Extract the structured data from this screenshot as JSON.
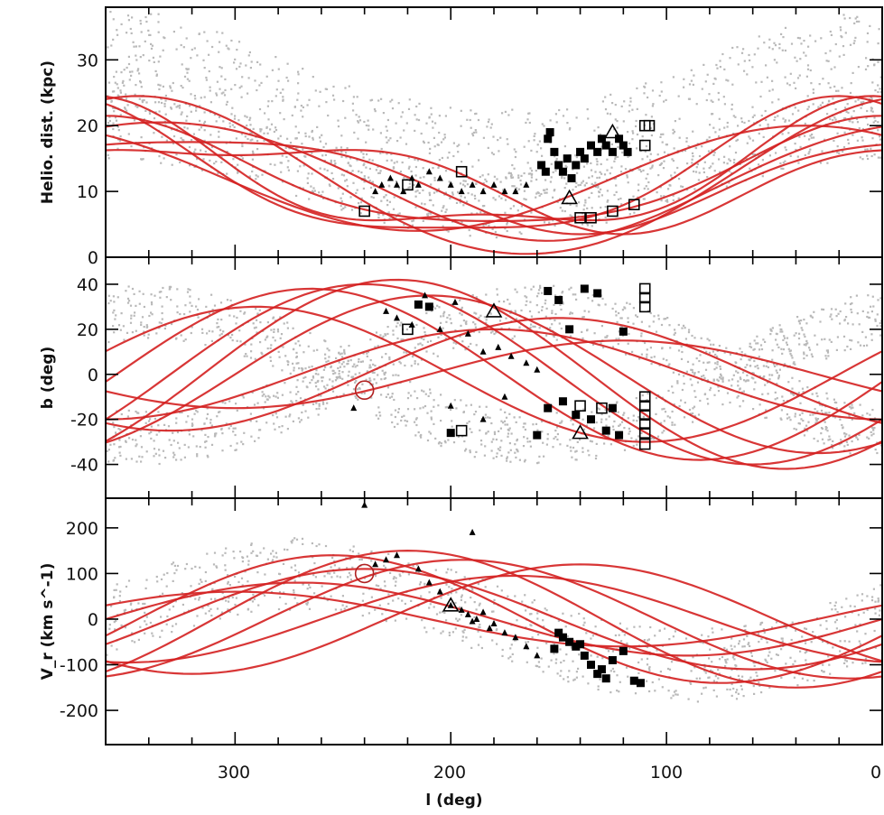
{
  "figure": {
    "xlabel": "l (deg)",
    "colors": {
      "models": "#d42020",
      "simulation": "#b9b9b9",
      "observations": "#000000"
    },
    "x_ticks": [
      {
        "value": 300,
        "label": "300"
      },
      {
        "value": 200,
        "label": "200"
      },
      {
        "value": 100,
        "label": "100"
      },
      {
        "value": 0,
        "label": "0"
      }
    ]
  },
  "chart_data": [
    {
      "type": "scatter",
      "panel": "top",
      "ylabel": "Helio. dist. (kpc)",
      "xlim": [
        360,
        0
      ],
      "ylim": [
        0,
        38
      ],
      "x_reversed": true,
      "yticks": [
        0,
        10,
        20,
        30
      ],
      "series": [
        {
          "marker": "filled-square",
          "x": [
            155,
            152,
            150,
            148,
            146,
            144,
            142,
            140,
            138,
            135,
            132,
            130,
            128,
            125,
            122,
            120,
            118,
            158,
            154,
            156
          ],
          "y": [
            18,
            16,
            14,
            13,
            15,
            12,
            14,
            16,
            15,
            17,
            16,
            18,
            17,
            16,
            18,
            17,
            16,
            14,
            19,
            13
          ]
        },
        {
          "marker": "small-filled-triangle",
          "x": [
            235,
            232,
            228,
            225,
            222,
            218,
            215,
            210,
            205,
            200,
            195,
            190,
            185,
            180,
            175,
            170,
            165
          ],
          "y": [
            10,
            11,
            12,
            11,
            10,
            12,
            11,
            13,
            12,
            11,
            10,
            11,
            10,
            11,
            10,
            10,
            11
          ]
        },
        {
          "marker": "open-square",
          "x": [
            240,
            220,
            195,
            140,
            135,
            125,
            115,
            110,
            110,
            108
          ],
          "y": [
            7,
            11,
            13,
            6,
            6,
            7,
            8,
            20,
            17,
            20
          ]
        },
        {
          "marker": "open-triangle",
          "x": [
            145,
            125
          ],
          "y": [
            9,
            19
          ]
        }
      ]
    },
    {
      "type": "scatter",
      "panel": "middle",
      "ylabel": "b (deg)",
      "xlim": [
        360,
        0
      ],
      "ylim": [
        -55,
        52
      ],
      "x_reversed": true,
      "yticks": [
        -40,
        -20,
        0,
        20,
        40
      ],
      "series": [
        {
          "marker": "filled-square",
          "x": [
            155,
            150,
            145,
            138,
            132,
            125,
            120,
            155,
            148,
            142,
            135,
            128,
            122,
            160,
            200,
            210,
            215
          ],
          "y": [
            37,
            33,
            20,
            38,
            36,
            -15,
            19,
            -15,
            -12,
            -18,
            -20,
            -25,
            -27,
            -27,
            -26,
            30,
            31
          ]
        },
        {
          "marker": "small-filled-triangle",
          "x": [
            230,
            225,
            218,
            212,
            205,
            198,
            192,
            185,
            178,
            172,
            165,
            160,
            245,
            200,
            175,
            185
          ],
          "y": [
            28,
            25,
            22,
            35,
            20,
            32,
            18,
            10,
            12,
            8,
            5,
            2,
            -15,
            -14,
            -10,
            -20
          ]
        },
        {
          "marker": "open-square",
          "x": [
            110,
            110,
            110,
            110,
            110,
            110,
            110,
            110,
            110,
            220,
            195,
            140,
            130
          ],
          "y": [
            38,
            34,
            30,
            -10,
            -14,
            -18,
            -22,
            -26,
            -31,
            20,
            -25,
            -14,
            -15
          ]
        },
        {
          "marker": "open-triangle",
          "x": [
            180,
            140
          ],
          "y": [
            28,
            -26
          ]
        },
        {
          "marker": "open-circle",
          "x": [
            240
          ],
          "y": [
            -7
          ]
        }
      ]
    },
    {
      "type": "scatter",
      "panel": "bottom",
      "ylabel": "V_r (km s^-1)",
      "xlim": [
        360,
        0
      ],
      "ylim": [
        -275,
        265
      ],
      "x_reversed": true,
      "yticks": [
        -200,
        -100,
        0,
        100,
        200
      ],
      "series": [
        {
          "marker": "filled-square",
          "x": [
            150,
            145,
            142,
            140,
            138,
            135,
            132,
            130,
            128,
            125,
            120,
            115,
            112,
            148,
            152
          ],
          "y": [
            -30,
            -50,
            -60,
            -55,
            -80,
            -100,
            -120,
            -110,
            -130,
            -90,
            -70,
            -135,
            -140,
            -40,
            -65
          ]
        },
        {
          "marker": "small-filled-triangle",
          "x": [
            235,
            230,
            225,
            215,
            210,
            205,
            200,
            195,
            192,
            190,
            188,
            185,
            182,
            180,
            175,
            170,
            165,
            160,
            240,
            190
          ],
          "y": [
            120,
            130,
            140,
            110,
            80,
            60,
            30,
            20,
            10,
            -5,
            0,
            15,
            -20,
            -10,
            -30,
            -40,
            -60,
            -80,
            250,
            190
          ]
        },
        {
          "marker": "open-triangle",
          "x": [
            200
          ],
          "y": [
            30
          ]
        },
        {
          "marker": "open-circle",
          "x": [
            240
          ],
          "y": [
            100
          ]
        }
      ]
    }
  ]
}
